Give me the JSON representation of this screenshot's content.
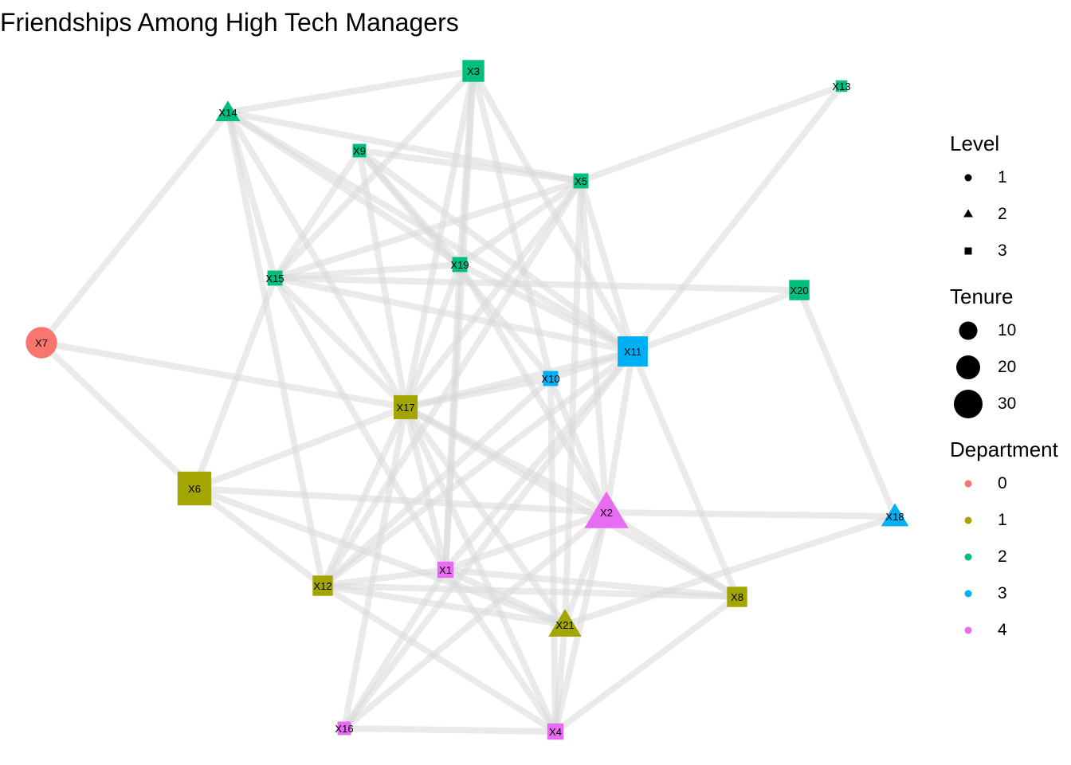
{
  "title": "Friendships Among High Tech Managers",
  "legend": {
    "level": {
      "title": "Level",
      "items": [
        {
          "label": "1",
          "shape": "circle"
        },
        {
          "label": "2",
          "shape": "triangle"
        },
        {
          "label": "3",
          "shape": "square"
        }
      ]
    },
    "tenure": {
      "title": "Tenure",
      "items": [
        {
          "label": "10",
          "size": 10
        },
        {
          "label": "20",
          "size": 20
        },
        {
          "label": "30",
          "size": 30
        }
      ]
    },
    "department": {
      "title": "Department",
      "items": [
        {
          "label": "0",
          "color": "#F8766D"
        },
        {
          "label": "1",
          "color": "#A3A500"
        },
        {
          "label": "2",
          "color": "#00BF7D"
        },
        {
          "label": "3",
          "color": "#00B0F6"
        },
        {
          "label": "4",
          "color": "#E76BF3"
        }
      ]
    }
  },
  "colors": {
    "edge": "#d9d9d9",
    "dept": {
      "0": "#F8766D",
      "1": "#A3A500",
      "2": "#00BF7D",
      "3": "#00B0F6",
      "4": "#E76BF3"
    }
  },
  "nodes": [
    {
      "id": "X1",
      "level": 3,
      "dept": 4,
      "tenure": 4
    },
    {
      "id": "X2",
      "level": 2,
      "dept": 4,
      "tenure": 26
    },
    {
      "id": "X3",
      "level": 3,
      "dept": 2,
      "tenure": 10
    },
    {
      "id": "X4",
      "level": 3,
      "dept": 4,
      "tenure": 4
    },
    {
      "id": "X5",
      "level": 3,
      "dept": 2,
      "tenure": 3
    },
    {
      "id": "X6",
      "level": 3,
      "dept": 1,
      "tenure": 32
    },
    {
      "id": "X7",
      "level": 1,
      "dept": 0,
      "tenure": 20
    },
    {
      "id": "X8",
      "level": 3,
      "dept": 1,
      "tenure": 8
    },
    {
      "id": "X9",
      "level": 3,
      "dept": 2,
      "tenure": 2
    },
    {
      "id": "X10",
      "level": 3,
      "dept": 3,
      "tenure": 3
    },
    {
      "id": "X11",
      "level": 3,
      "dept": 3,
      "tenure": 24
    },
    {
      "id": "X12",
      "level": 3,
      "dept": 1,
      "tenure": 8
    },
    {
      "id": "X13",
      "level": 3,
      "dept": 2,
      "tenure": 1
    },
    {
      "id": "X14",
      "level": 2,
      "dept": 2,
      "tenure": 5
    },
    {
      "id": "X15",
      "level": 3,
      "dept": 2,
      "tenure": 3
    },
    {
      "id": "X16",
      "level": 3,
      "dept": 4,
      "tenure": 2
    },
    {
      "id": "X17",
      "level": 3,
      "dept": 1,
      "tenure": 13
    },
    {
      "id": "X18",
      "level": 2,
      "dept": 3,
      "tenure": 7
    },
    {
      "id": "X19",
      "level": 3,
      "dept": 2,
      "tenure": 3
    },
    {
      "id": "X20",
      "level": 3,
      "dept": 2,
      "tenure": 8
    },
    {
      "id": "X21",
      "level": 2,
      "dept": 1,
      "tenure": 12
    }
  ],
  "edges": [
    [
      "X7",
      "X14"
    ],
    [
      "X7",
      "X17"
    ],
    [
      "X7",
      "X6"
    ],
    [
      "X14",
      "X3"
    ],
    [
      "X14",
      "X5"
    ],
    [
      "X14",
      "X15"
    ],
    [
      "X14",
      "X19"
    ],
    [
      "X14",
      "X17"
    ],
    [
      "X14",
      "X11"
    ],
    [
      "X14",
      "X12"
    ],
    [
      "X3",
      "X15"
    ],
    [
      "X3",
      "X19"
    ],
    [
      "X3",
      "X17"
    ],
    [
      "X3",
      "X10"
    ],
    [
      "X3",
      "X11"
    ],
    [
      "X3",
      "X1"
    ],
    [
      "X9",
      "X5"
    ],
    [
      "X9",
      "X15"
    ],
    [
      "X9",
      "X19"
    ],
    [
      "X9",
      "X11"
    ],
    [
      "X9",
      "X10"
    ],
    [
      "X9",
      "X17"
    ],
    [
      "X5",
      "X13"
    ],
    [
      "X5",
      "X15"
    ],
    [
      "X5",
      "X19"
    ],
    [
      "X5",
      "X17"
    ],
    [
      "X5",
      "X11"
    ],
    [
      "X5",
      "X2"
    ],
    [
      "X5",
      "X21"
    ],
    [
      "X5",
      "X12"
    ],
    [
      "X15",
      "X19"
    ],
    [
      "X15",
      "X11"
    ],
    [
      "X15",
      "X17"
    ],
    [
      "X15",
      "X1"
    ],
    [
      "X15",
      "X6"
    ],
    [
      "X15",
      "X20"
    ],
    [
      "X19",
      "X17"
    ],
    [
      "X19",
      "X11"
    ],
    [
      "X19",
      "X1"
    ],
    [
      "X19",
      "X2"
    ],
    [
      "X13",
      "X11"
    ],
    [
      "X20",
      "X11"
    ],
    [
      "X20",
      "X18"
    ],
    [
      "X11",
      "X10"
    ],
    [
      "X11",
      "X17"
    ],
    [
      "X11",
      "X2"
    ],
    [
      "X11",
      "X8"
    ],
    [
      "X11",
      "X1"
    ],
    [
      "X11",
      "X12"
    ],
    [
      "X11",
      "X16"
    ],
    [
      "X10",
      "X17"
    ],
    [
      "X10",
      "X2"
    ],
    [
      "X10",
      "X4"
    ],
    [
      "X10",
      "X12"
    ],
    [
      "X17",
      "X6"
    ],
    [
      "X17",
      "X2"
    ],
    [
      "X17",
      "X12"
    ],
    [
      "X17",
      "X1"
    ],
    [
      "X17",
      "X21"
    ],
    [
      "X17",
      "X4"
    ],
    [
      "X17",
      "X16"
    ],
    [
      "X17",
      "X8"
    ],
    [
      "X6",
      "X2"
    ],
    [
      "X6",
      "X12"
    ],
    [
      "X6",
      "X21"
    ],
    [
      "X2",
      "X18"
    ],
    [
      "X2",
      "X1"
    ],
    [
      "X2",
      "X21"
    ],
    [
      "X2",
      "X8"
    ],
    [
      "X2",
      "X4"
    ],
    [
      "X2",
      "X16"
    ],
    [
      "X12",
      "X1"
    ],
    [
      "X12",
      "X21"
    ],
    [
      "X12",
      "X4"
    ],
    [
      "X12",
      "X8"
    ],
    [
      "X1",
      "X21"
    ],
    [
      "X1",
      "X8"
    ],
    [
      "X1",
      "X16"
    ],
    [
      "X1",
      "X4"
    ],
    [
      "X21",
      "X18"
    ],
    [
      "X21",
      "X4"
    ],
    [
      "X8",
      "X4"
    ],
    [
      "X16",
      "X4"
    ]
  ]
}
